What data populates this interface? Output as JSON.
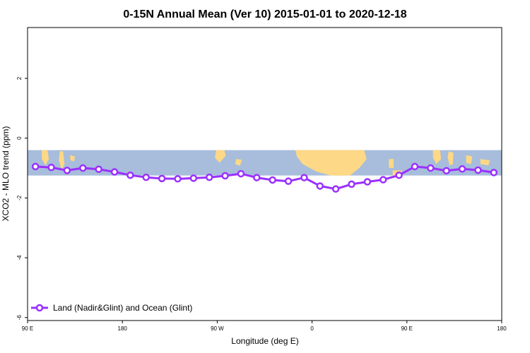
{
  "chart_data": {
    "type": "line",
    "title": "0-15N Annual Mean (Ver 10)   2015-01-01 to 2020-12-18",
    "xlabel": "Longitude (deg E)",
    "ylabel": "XCO2 - MLO trend (ppm)",
    "xlim": [
      -90,
      180
    ],
    "ylim": [
      -6.1,
      3.7
    ],
    "x_ticks": [
      {
        "value": -90,
        "label": "90 E"
      },
      {
        "value": -36,
        "label": "180"
      },
      {
        "value": 18,
        "label": "90 W"
      },
      {
        "value": 72,
        "label": "0"
      },
      {
        "value": 126,
        "label": "90 E"
      },
      {
        "value": 180,
        "label": "180"
      }
    ],
    "y_ticks": [
      2,
      0,
      -2,
      -4,
      -6
    ],
    "grid": false,
    "legend_position": "bottom-left",
    "background_map": {
      "y_range": [
        -0.4,
        -1.25
      ],
      "ocean_color": "#a7bddb",
      "land_color": "#fdd886"
    },
    "series": [
      {
        "name": "Land (Nadir&Glint) and Ocean (Glint)",
        "color": "#9b30ff",
        "marker": "open-circle",
        "x": [
          -85.5,
          -76.5,
          -67.5,
          -58.5,
          -49.5,
          -40.5,
          -31.5,
          -22.5,
          -13.5,
          -4.5,
          4.5,
          13.5,
          22.5,
          31.5,
          40.5,
          49.5,
          58.5,
          67.5,
          76.5,
          85.5,
          94.5,
          103.5,
          112.5,
          121.5,
          130.5,
          139.5,
          148.5,
          157.5,
          166.5,
          175.5
        ],
        "values": [
          -0.95,
          -0.98,
          -1.08,
          -1.0,
          -1.04,
          -1.13,
          -1.24,
          -1.31,
          -1.35,
          -1.36,
          -1.34,
          -1.31,
          -1.26,
          -1.19,
          -1.32,
          -1.4,
          -1.44,
          -1.32,
          -1.6,
          -1.7,
          -1.54,
          -1.46,
          -1.39,
          -1.24,
          -0.95,
          -1.0,
          -1.09,
          -1.03,
          -1.07,
          -1.15
        ]
      }
    ]
  }
}
